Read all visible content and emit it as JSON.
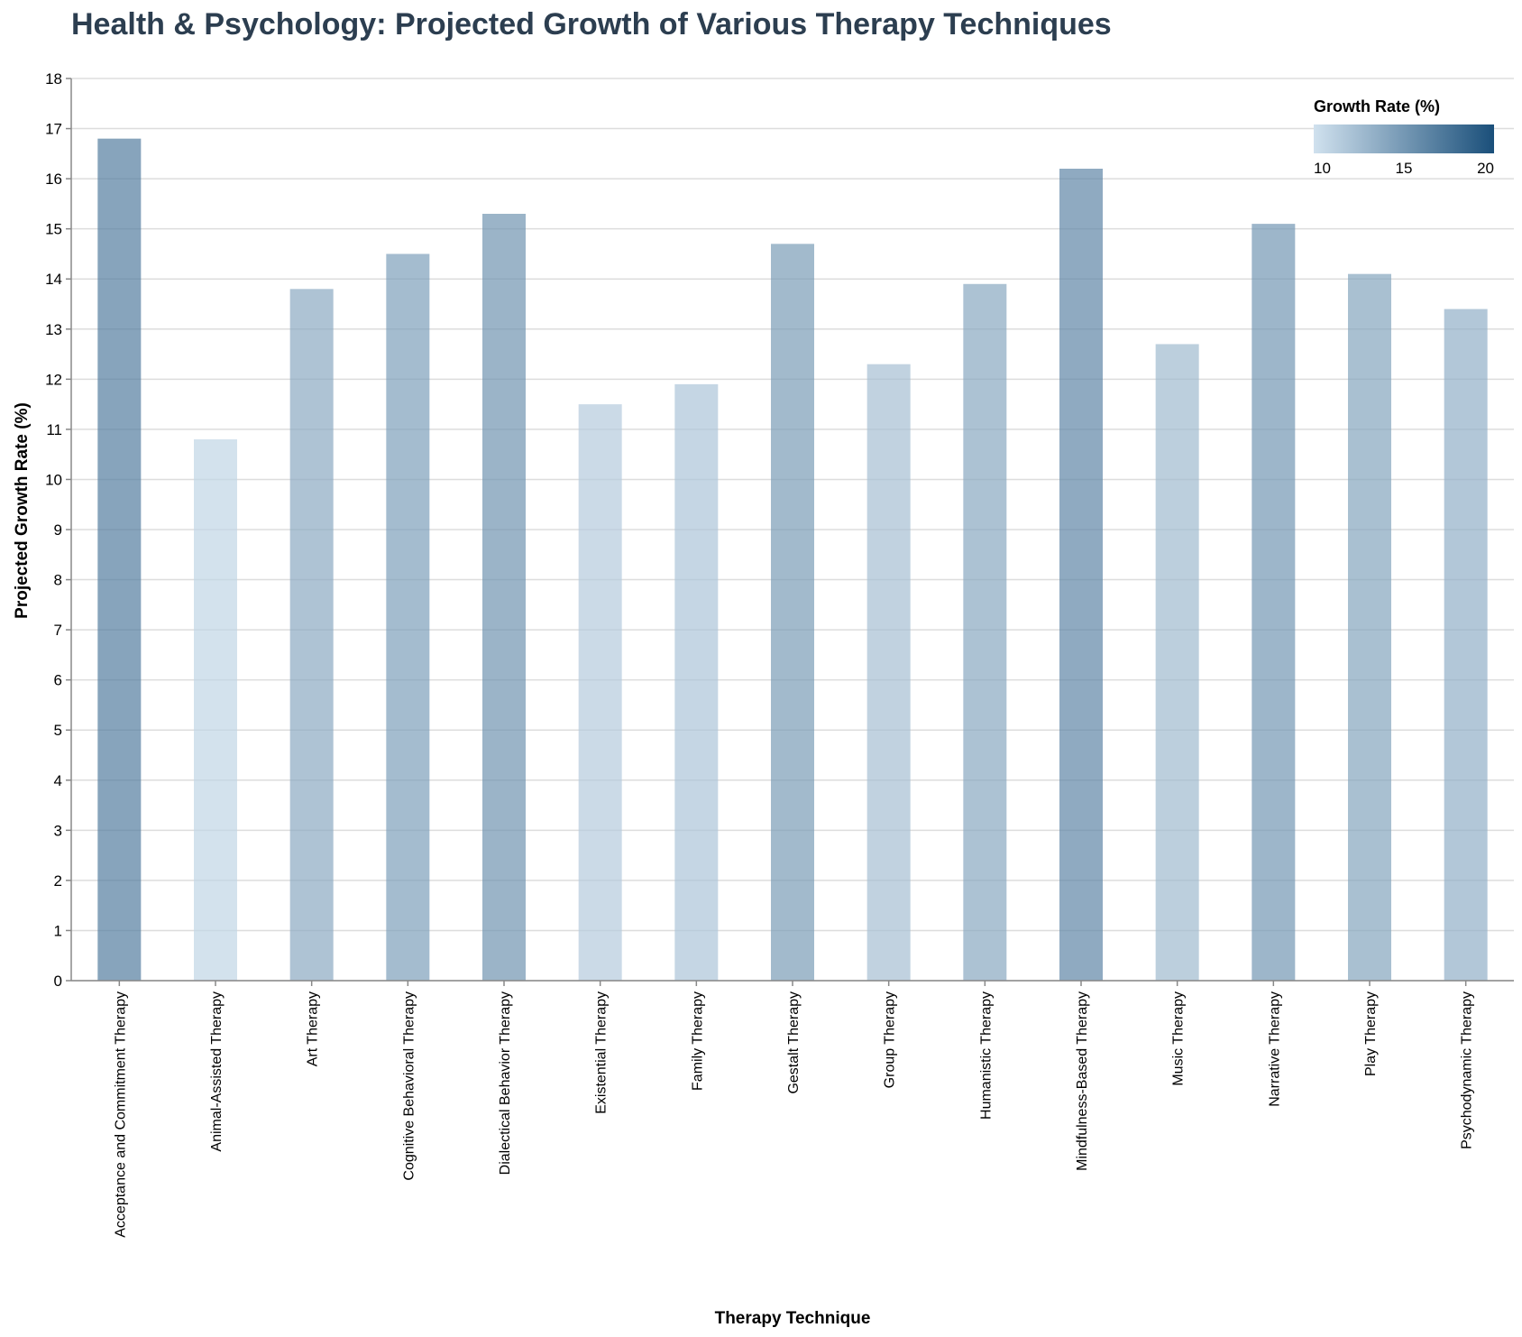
{
  "chart_data": {
    "type": "bar",
    "title": "Health & Psychology: Projected Growth of Various Therapy Techniques",
    "xlabel": "Therapy Technique",
    "ylabel": "Projected Growth Rate (%)",
    "ylim": [
      0,
      18
    ],
    "yticks": [
      0,
      1,
      2,
      3,
      4,
      5,
      6,
      7,
      8,
      9,
      10,
      11,
      12,
      13,
      14,
      15,
      16,
      17,
      18
    ],
    "grid": true,
    "categories": [
      "Acceptance and Commitment Therapy",
      "Animal-Assisted Therapy",
      "Art Therapy",
      "Cognitive Behavioral Therapy",
      "Dialectical Behavior Therapy",
      "Existential Therapy",
      "Family Therapy",
      "Gestalt Therapy",
      "Group Therapy",
      "Humanistic Therapy",
      "Mindfulness-Based Therapy",
      "Music Therapy",
      "Narrative Therapy",
      "Play Therapy",
      "Psychodynamic Therapy"
    ],
    "values": [
      16.8,
      10.8,
      13.8,
      14.5,
      15.3,
      11.5,
      11.9,
      14.7,
      12.3,
      13.9,
      16.2,
      12.7,
      15.1,
      14.1,
      13.4
    ],
    "legend": {
      "title": "Growth Rate (%)",
      "placement": "top-right",
      "domain": [
        10,
        20
      ],
      "ticks": [
        10,
        15,
        20
      ],
      "color_low": "#d0e1ee",
      "color_high": "#1a4f7a"
    },
    "bar_opacity": 0.7
  }
}
